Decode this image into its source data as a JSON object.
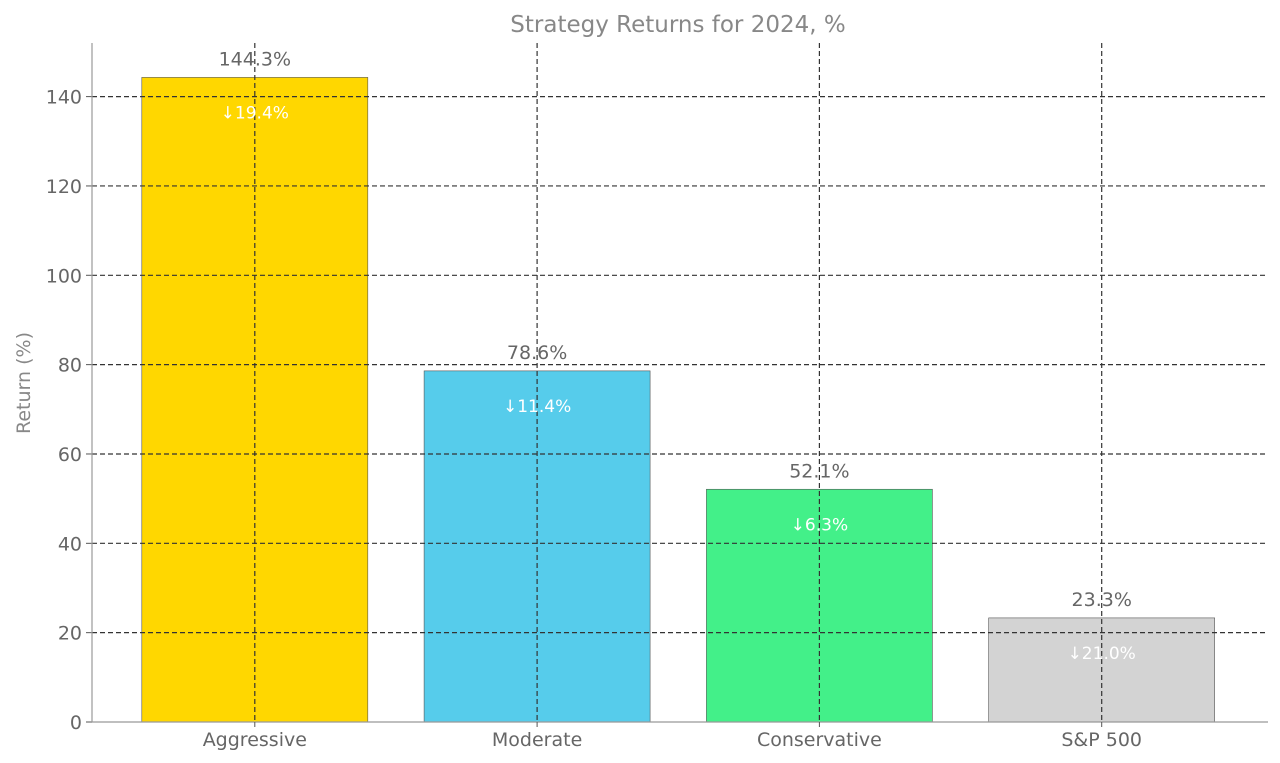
{
  "chart_data": {
    "type": "bar",
    "title": "Strategy Returns for 2024, %",
    "xlabel": "",
    "ylabel": "Return (%)",
    "categories": [
      "Aggressive",
      "Moderate",
      "Conservative",
      "S&P 500"
    ],
    "values": [
      144.3,
      78.6,
      52.1,
      23.3
    ],
    "value_labels": [
      "144.3%",
      "78.6%",
      "52.1%",
      "23.3%"
    ],
    "drawdown_labels": [
      "↓19.4%",
      "↓11.4%",
      "↓6.3%",
      "↓21.0%"
    ],
    "bar_colors": [
      "#FFD700",
      "#56CCEB",
      "#43F089",
      "#D3D3D3"
    ],
    "ylim": [
      0,
      152
    ],
    "yticks": [
      0,
      20,
      40,
      60,
      80,
      100,
      120,
      140
    ],
    "grid": true,
    "legend": "none"
  }
}
